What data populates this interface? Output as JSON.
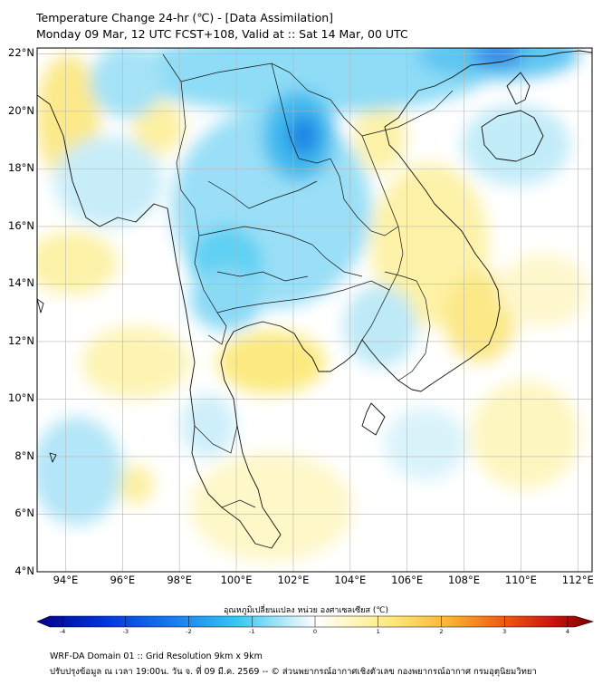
{
  "header": {
    "title_line1": "Temperature Change 24-hr (℃) - [Data Assimilation]",
    "title_line2": "Monday 09 Mar, 12 UTC FCST+108, Valid at :: Sat 14 Mar, 00 UTC"
  },
  "map": {
    "lat_labels": [
      "22°N",
      "20°N",
      "18°N",
      "16°N",
      "14°N",
      "12°N",
      "10°N",
      "8°N",
      "6°N",
      "4°N"
    ],
    "lon_labels": [
      "94°E",
      "96°E",
      "98°E",
      "100°E",
      "102°E",
      "104°E",
      "106°E",
      "108°E",
      "110°E",
      "112°E"
    ],
    "lat_range": [
      4,
      22.2
    ],
    "lon_range": [
      93,
      112.5
    ],
    "colors": {
      "cold_strong": "#0a47c8",
      "cold": "#2ec4ef",
      "cool": "#bde9f7",
      "neutral": "#ffffff",
      "warm": "#fdf3a6",
      "coast": "#111111",
      "grid": "#b5b5b5"
    }
  },
  "colorbar": {
    "title": "อุณหภูมิเปลี่ยนแปลง หน่วย องศาเซลเซียส (℃)",
    "tick_labels": [
      "-4",
      "-3",
      "-2",
      "-1",
      "0",
      "1",
      "2",
      "3",
      "4"
    ],
    "range": [
      -4,
      4
    ]
  },
  "footer": {
    "line1": "WRF-DA Domain 01 :: Grid Resolution 9km x 9km",
    "line2": "ปรับปรุงข้อมูล ณ เวลา 19:00น. วัน จ. ที่ 09 มี.ค. 2569 -- © ส่วนพยากรณ์อากาศเชิงตัวเลข กองพยากรณ์อากาศ กรมอุตุนิยมวิทยา"
  }
}
